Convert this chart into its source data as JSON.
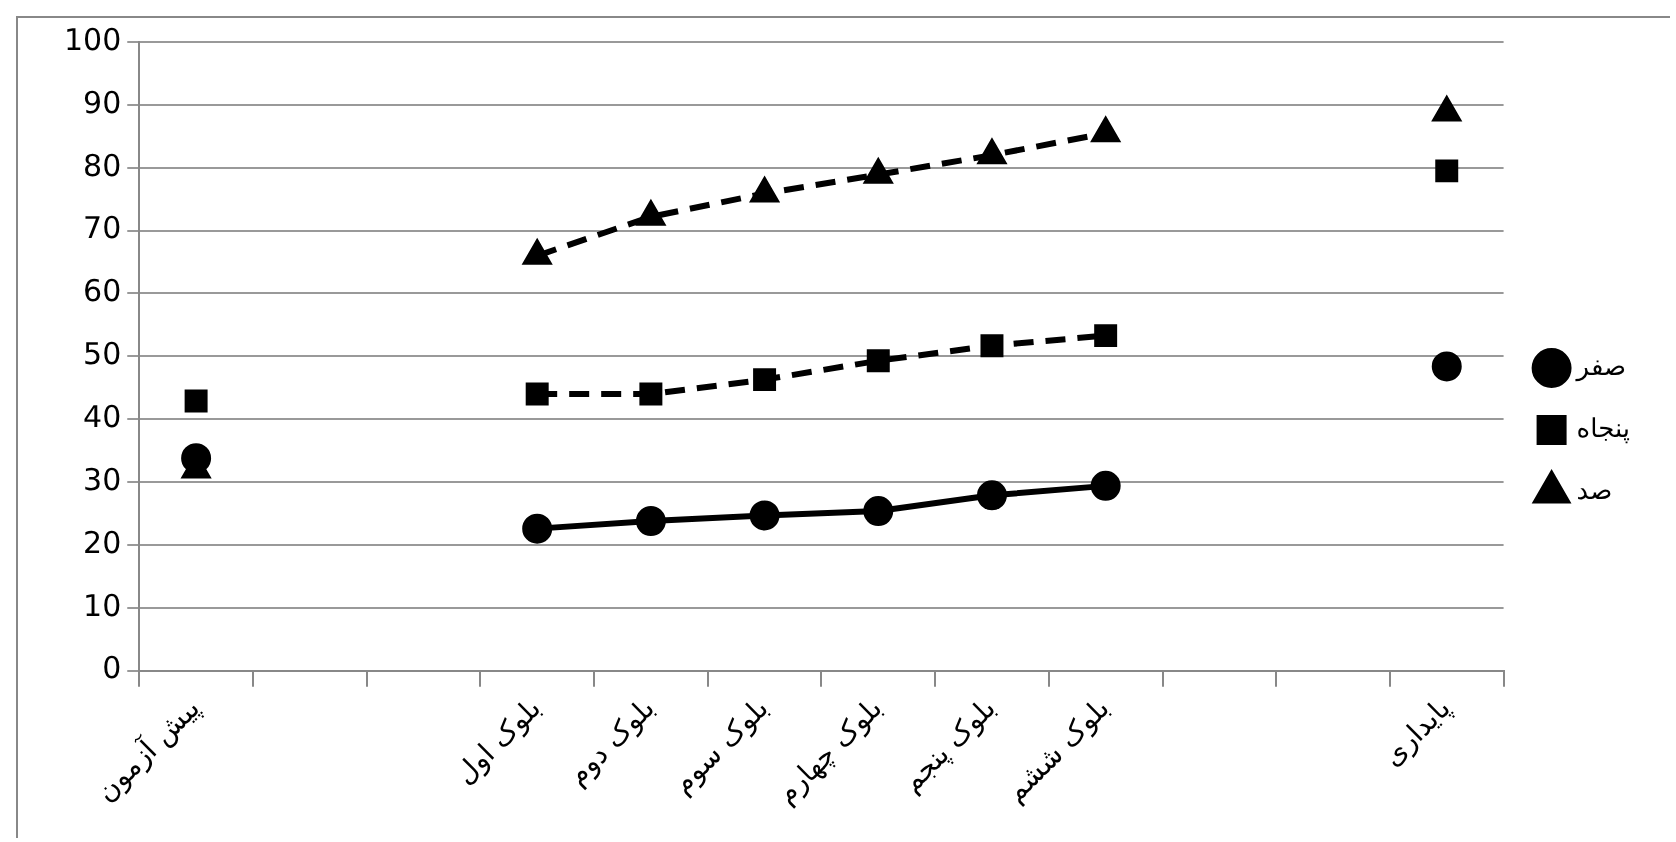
{
  "chart_data": {
    "type": "line",
    "categories": [
      "پیش آزمون",
      null,
      null,
      "بلوک اول",
      "بلوک دوم",
      "بلوک سوم",
      "بلوک چهارم",
      "بلوک پنجم",
      "بلوک ششم",
      null,
      null,
      "پایداری"
    ],
    "series": [
      {
        "name": "صفر",
        "color": "#000000",
        "marker": "circle",
        "line_style": "solid",
        "values": [
          33.8,
          null,
          null,
          22.6,
          23.8,
          24.7,
          25.4,
          27.9,
          29.4,
          null,
          null,
          48.4
        ]
      },
      {
        "name": "پنجاه",
        "color": "#000000",
        "marker": "square",
        "line_style": "dashed",
        "values": [
          42.9,
          null,
          null,
          44,
          44,
          46.3,
          49.3,
          51.7,
          53.3,
          null,
          null,
          79.5
        ]
      },
      {
        "name": "صد",
        "color": "#000000",
        "marker": "triangle",
        "line_style": "dashed",
        "values": [
          32,
          null,
          null,
          66,
          72.2,
          75.9,
          78.9,
          82,
          85.5,
          null,
          null,
          88.8
        ]
      }
    ],
    "ylim": [
      0,
      100
    ],
    "yticks": [
      0,
      10,
      20,
      30,
      40,
      50,
      60,
      70,
      80,
      90,
      100
    ],
    "grid": "y",
    "legend": "right"
  }
}
